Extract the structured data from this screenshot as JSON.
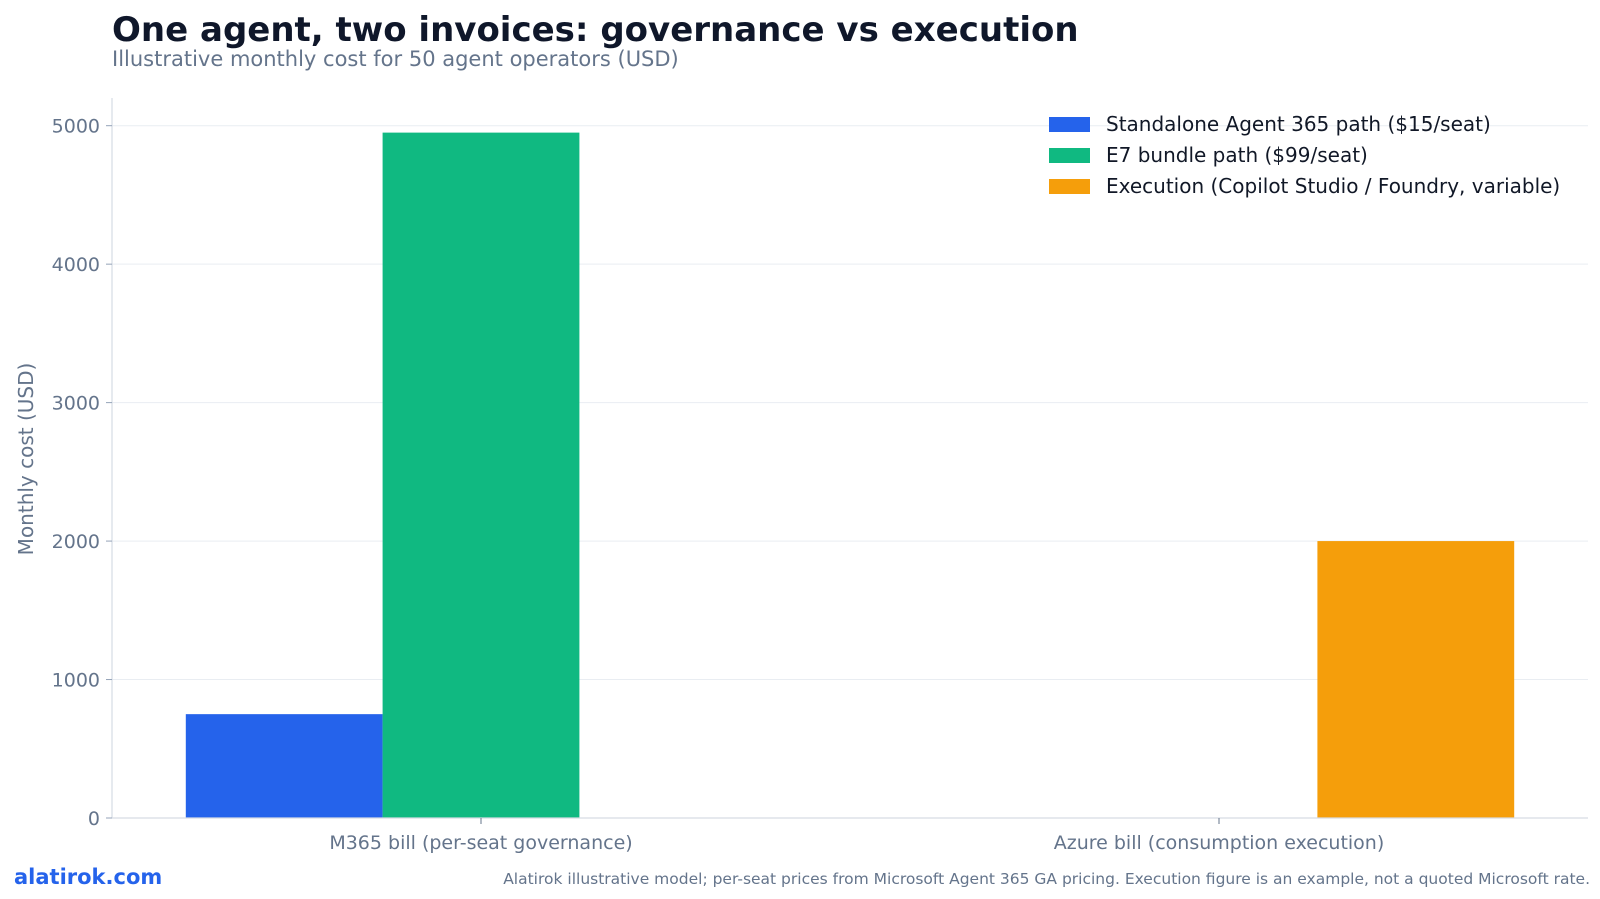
{
  "chart_data": {
    "type": "bar",
    "title": "One agent, two invoices: governance vs execution",
    "subtitle": "Illustrative monthly cost for 50 agent operators (USD)",
    "xlabel": "",
    "ylabel": "Monthly cost (USD)",
    "ylim": [
      0,
      5200
    ],
    "yticks": [
      0,
      1000,
      2000,
      3000,
      4000,
      5000
    ],
    "grid": true,
    "legend_position": "top-right",
    "categories": [
      "M365 bill (per-seat governance)",
      "Azure bill (consumption execution)"
    ],
    "series": [
      {
        "name": "Standalone Agent 365 path ($15/seat)",
        "color": "#2563eb",
        "values": [
          750,
          0
        ]
      },
      {
        "name": "E7 bundle path ($99/seat)",
        "color": "#10b981",
        "values": [
          4950,
          0
        ]
      },
      {
        "name": "Execution (Copilot Studio / Foundry, variable)",
        "color": "#f59e0b",
        "values": [
          0,
          2000
        ]
      }
    ]
  },
  "footer": {
    "brand": "alatirok.com",
    "note": "Alatirok illustrative model; per-seat prices from Microsoft Agent 365 GA pricing. Execution figure is an example, not a quoted Microsoft rate."
  }
}
